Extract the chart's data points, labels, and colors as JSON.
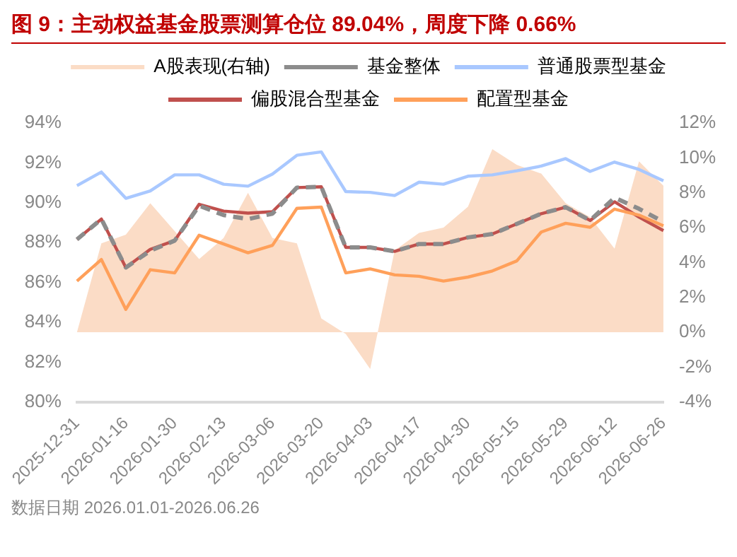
{
  "chart_data": {
    "type": "line",
    "title": "图 9：主动权益基金股票测算仓位 89.04%，周度下降 0.66%",
    "categories": [
      "2025-12-31",
      null,
      "2026-01-16",
      null,
      "2026-01-30",
      null,
      "2026-02-13",
      null,
      "2026-03-06",
      null,
      "2026-03-20",
      null,
      "2026-04-03",
      null,
      "2026-04-17",
      null,
      "2026-04-30",
      null,
      "2026-05-15",
      null,
      "2026-05-29",
      null,
      "2026-06-12",
      null,
      "2026-06-26"
    ],
    "series": [
      {
        "name": "A股表现(右轴)",
        "type": "area",
        "axis": "y2",
        "color": "#fbdcc6",
        "values": [
          0,
          5.1,
          5.6,
          7.4,
          5.8,
          4.2,
          5.4,
          8,
          5.4,
          5.1,
          0.8,
          -0.1,
          -2.1,
          4.7,
          5.7,
          6,
          7.2,
          10.5,
          9.6,
          9.1,
          7.4,
          6.6,
          4.8,
          9.8,
          8.4
        ]
      },
      {
        "name": "基金整体",
        "color": "#8c8c8c",
        "line_style": "dashed",
        "values": [
          88.16,
          89.18,
          86.75,
          87.59,
          88.1,
          89.85,
          89.38,
          89.18,
          89.45,
          90.76,
          90.8,
          87.76,
          87.76,
          87.56,
          87.93,
          87.93,
          88.26,
          88.43,
          88.94,
          89.45,
          89.78,
          89.11,
          90.25,
          89.7,
          89.04
        ]
      },
      {
        "name": "普通股票型基金",
        "color": "#a9c8ff",
        "values": [
          90.86,
          91.54,
          90.22,
          90.59,
          91.4,
          91.4,
          90.93,
          90.83,
          91.44,
          92.38,
          92.55,
          90.56,
          90.52,
          90.36,
          91.03,
          90.93,
          91.33,
          91.4,
          91.6,
          91.84,
          92.21,
          91.57,
          92.04,
          91.67,
          91.1
        ]
      },
      {
        "name": "偏股混合型基金",
        "color": "#c0504d",
        "values": [
          88.16,
          89.18,
          86.75,
          87.66,
          88.1,
          89.92,
          89.58,
          89.48,
          89.55,
          90.76,
          90.8,
          87.76,
          87.76,
          87.56,
          87.93,
          87.93,
          88.26,
          88.43,
          88.94,
          89.45,
          89.78,
          89.11,
          90.05,
          89.28,
          88.6
        ]
      },
      {
        "name": "配置型基金",
        "color": "#ffa05a",
        "values": [
          86.07,
          87.15,
          84.65,
          86.64,
          86.48,
          88.37,
          87.93,
          87.49,
          87.86,
          89.72,
          89.78,
          86.48,
          86.68,
          86.38,
          86.31,
          86.07,
          86.27,
          86.58,
          87.08,
          88.53,
          88.97,
          88.77,
          89.68,
          89.38,
          88.84
        ]
      }
    ],
    "ylim": [
      80,
      94
    ],
    "yticks": [
      {
        "value": 80,
        "label": "80%"
      },
      {
        "value": 82,
        "label": "82%"
      },
      {
        "value": 84,
        "label": "84%"
      },
      {
        "value": 86,
        "label": "86%"
      },
      {
        "value": 88,
        "label": "88%"
      },
      {
        "value": 90,
        "label": "90%"
      },
      {
        "value": 92,
        "label": "92%"
      },
      {
        "value": 94,
        "label": "94%"
      }
    ],
    "y2lim": [
      -4,
      12
    ],
    "y2ticks": [
      {
        "value": -4,
        "label": "-4%"
      },
      {
        "value": -2,
        "label": "-2%"
      },
      {
        "value": 0,
        "label": "0%"
      },
      {
        "value": 2,
        "label": "2%"
      },
      {
        "value": 4,
        "label": "4%"
      },
      {
        "value": 6,
        "label": "6%"
      },
      {
        "value": 8,
        "label": "8%"
      },
      {
        "value": 10,
        "label": "10%"
      },
      {
        "value": 12,
        "label": "12%"
      }
    ],
    "grid": false,
    "legend": "top",
    "marker": "none",
    "annotations": [
      "数据日期 2026.01.01-2026.06.26"
    ]
  }
}
